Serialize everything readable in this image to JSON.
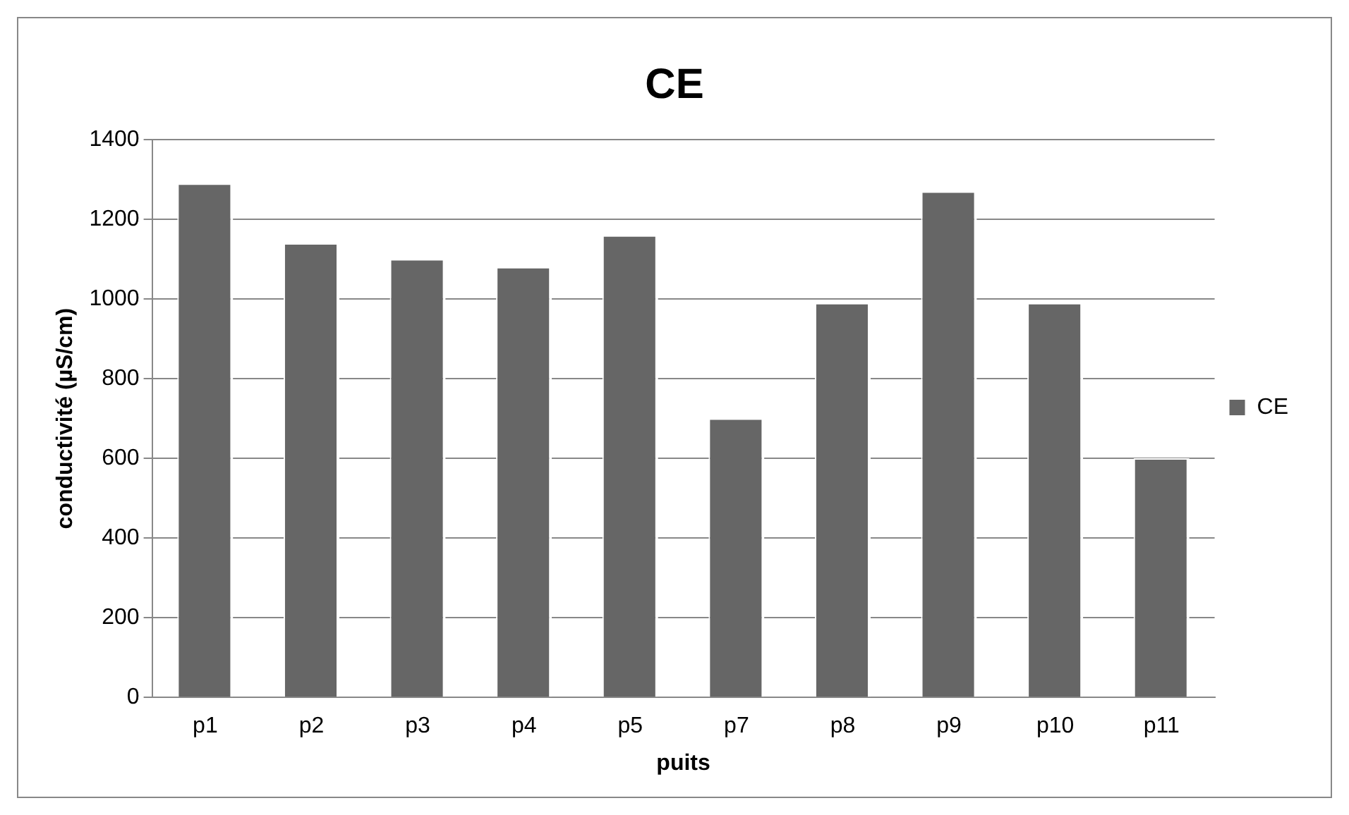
{
  "chart_data": {
    "type": "bar",
    "title": "CE",
    "xlabel": "puits",
    "ylabel": "conductivité (µS/cm)",
    "categories": [
      "p1",
      "p2",
      "p3",
      "p4",
      "p5",
      "p7",
      "p8",
      "p9",
      "p10",
      "p11"
    ],
    "series": [
      {
        "name": "CE",
        "color": "#666666",
        "values": [
          1290,
          1140,
          1100,
          1080,
          1160,
          700,
          990,
          1270,
          990,
          600
        ]
      }
    ],
    "ylim": [
      0,
      1400
    ],
    "yticks": [
      0,
      200,
      400,
      600,
      800,
      1000,
      1200,
      1400
    ],
    "grid": "y",
    "legend": "right"
  }
}
